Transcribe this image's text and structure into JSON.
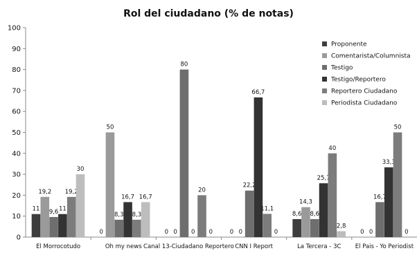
{
  "chart_data": {
    "type": "bar",
    "title": "Rol del ciudadano (% de notas)",
    "xlabel": "",
    "ylabel": "",
    "ylim": [
      0,
      100
    ],
    "yticks": [
      0,
      10,
      20,
      30,
      40,
      50,
      60,
      70,
      80,
      90,
      100
    ],
    "grid": false,
    "legend_position": "top-right",
    "categories": [
      "El Morrocotudo",
      "Oh my news",
      "Canal 13-Ciudadano Reportero",
      "CNN I Report",
      "La Tercera - 3C",
      "El Pais - Yo Periodist"
    ],
    "series": [
      {
        "name": "Proponente",
        "color": "#3d3d3d",
        "values": [
          11,
          0,
          0,
          0,
          8.6,
          0
        ],
        "labels": [
          "11",
          "0",
          "0",
          "0",
          "8,6",
          "0"
        ]
      },
      {
        "name": "Comentarista/Columnista",
        "color": "#9a9a9a",
        "values": [
          19.2,
          50,
          0,
          0,
          14.3,
          0
        ],
        "labels": [
          "19,2",
          "50",
          "0",
          "0",
          "14,3",
          "0"
        ]
      },
      {
        "name": "Testigo",
        "color": "#6e6e6e",
        "values": [
          9.6,
          8.3,
          80,
          22.2,
          8.6,
          16.7
        ],
        "labels": [
          "9,6",
          "8,3",
          "80",
          "22,2",
          "8,6",
          "16,7"
        ]
      },
      {
        "name": "Testigo/Reportero",
        "color": "#333333",
        "values": [
          11,
          16.7,
          0,
          66.7,
          25.7,
          33.3
        ],
        "labels": [
          "11",
          "16,7",
          "0",
          "66,7",
          "25,7",
          "33,3"
        ]
      },
      {
        "name": "Reportero Ciudadano",
        "color": "#7c7c7c",
        "values": [
          19.2,
          8.3,
          20,
          11.1,
          40,
          50
        ],
        "labels": [
          "19,2",
          "8,3",
          "20",
          "11,1",
          "40",
          "50"
        ]
      },
      {
        "name": "Periodista Ciudadano",
        "color": "#bdbdbd",
        "values": [
          30,
          16.7,
          0,
          0,
          2.8,
          0
        ],
        "labels": [
          "30",
          "16,7",
          "0",
          "0",
          "2,8",
          "0"
        ]
      }
    ]
  }
}
